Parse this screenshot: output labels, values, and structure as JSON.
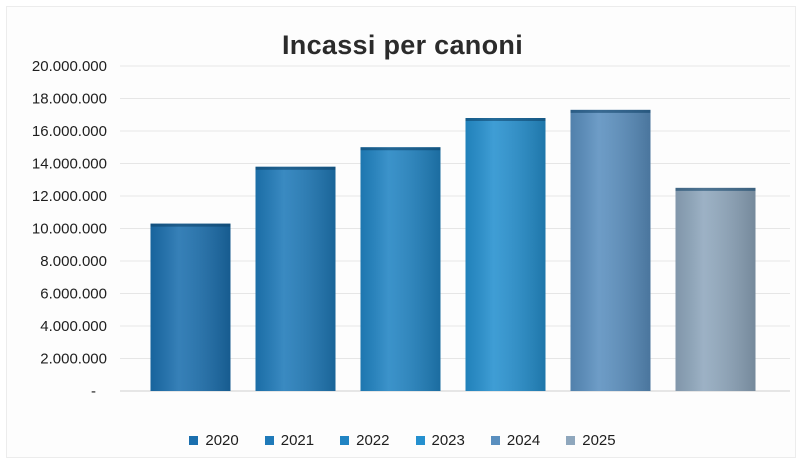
{
  "chart_data": {
    "type": "bar",
    "title": "Incassi per canoni",
    "xlabel": "",
    "ylabel": "",
    "categories": [
      "2020",
      "2021",
      "2022",
      "2023",
      "2024",
      "2025"
    ],
    "values": [
      10300000,
      13800000,
      15000000,
      16800000,
      17300000,
      12500000
    ],
    "ylim": [
      0,
      20000000
    ],
    "yticks": [
      0,
      2000000,
      4000000,
      6000000,
      8000000,
      10000000,
      12000000,
      14000000,
      16000000,
      18000000,
      20000000
    ],
    "ytick_labels": [
      "-",
      "2.000.000",
      "4.000.000",
      "6.000.000",
      "8.000.000",
      "10.000.000",
      "12.000.000",
      "14.000.000",
      "16.000.000",
      "18.000.000",
      "20.000.000"
    ],
    "colors": [
      "#1b6fae",
      "#1f7ab9",
      "#2184c3",
      "#2590cf",
      "#5a8fbf",
      "#8fa7bd"
    ],
    "grid": true,
    "legend_position": "bottom",
    "legend": [
      "2020",
      "2021",
      "2022",
      "2023",
      "2024",
      "2025"
    ]
  }
}
